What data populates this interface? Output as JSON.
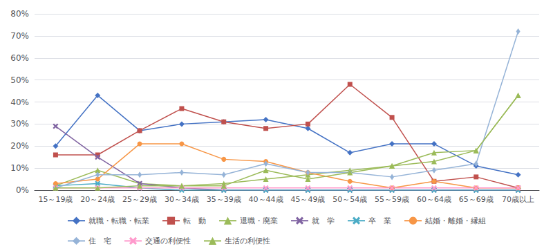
{
  "chart_data": {
    "type": "line",
    "categories": [
      "15～19歳",
      "20～24歳",
      "25～29歳",
      "30～34歳",
      "35～39歳",
      "40～44歳",
      "45～49歳",
      "50～54歳",
      "55～59歳",
      "60～64歳",
      "65～69歳",
      "70歳以上"
    ],
    "series": [
      {
        "name": "就職・転職・転業",
        "color": "#4472C4",
        "marker": "diamond",
        "values": [
          20,
          43,
          27,
          30,
          31,
          32,
          28,
          17,
          21,
          21,
          11,
          7
        ]
      },
      {
        "name": "転　動",
        "color": "#C0504D",
        "marker": "square",
        "values": [
          16,
          16,
          27,
          37,
          31,
          28,
          30,
          48,
          33,
          4,
          6,
          1
        ]
      },
      {
        "name": "退職・廃業",
        "color": "#9BBB59",
        "marker": "triangle",
        "values": [
          2,
          9,
          3,
          2,
          3,
          5,
          7,
          9,
          11,
          13,
          18,
          43
        ]
      },
      {
        "name": "就　学",
        "color": "#8064A2",
        "marker": "x",
        "values": [
          29,
          15,
          3,
          1,
          0,
          0,
          0,
          0,
          0,
          0,
          0,
          0
        ]
      },
      {
        "name": "卒　業",
        "color": "#4BACC6",
        "marker": "x",
        "values": [
          2,
          3,
          1,
          0,
          0,
          0,
          0,
          0,
          0,
          0,
          0,
          0
        ]
      },
      {
        "name": "結婚・離婚・縁組",
        "color": "#F79646",
        "marker": "circle",
        "values": [
          3,
          5,
          21,
          21,
          14,
          13,
          8,
          4,
          1,
          4,
          1,
          1
        ]
      },
      {
        "name": "住　宅",
        "color": "#95B3D7",
        "marker": "thin_diamond",
        "values": [
          1,
          7,
          7,
          8,
          7,
          12,
          8,
          8,
          6,
          9,
          12,
          72
        ]
      },
      {
        "name": "交通の利便性",
        "color": "#FF99CC",
        "marker": "x",
        "values": [
          1,
          1,
          1,
          1,
          1,
          1,
          1,
          1,
          1,
          1,
          1,
          1
        ]
      },
      {
        "name": "生活の利便性",
        "color": "#9BBB59",
        "marker": "triangle",
        "values": [
          1,
          1,
          2,
          2,
          2,
          9,
          5,
          8,
          11,
          17,
          18,
          43
        ]
      }
    ],
    "ylim": [
      0,
      80
    ],
    "yticks": [
      {
        "value": 0,
        "label": "0%"
      },
      {
        "value": 10,
        "label": "10%"
      },
      {
        "value": 20,
        "label": "20%"
      },
      {
        "value": 30,
        "label": "30%"
      },
      {
        "value": 40,
        "label": "40%"
      },
      {
        "value": 50,
        "label": "50%"
      },
      {
        "value": 60,
        "label": "60%"
      },
      {
        "value": 70,
        "label": "70%"
      },
      {
        "value": 80,
        "label": "80%"
      }
    ],
    "grid": true,
    "legend": "bottom"
  }
}
